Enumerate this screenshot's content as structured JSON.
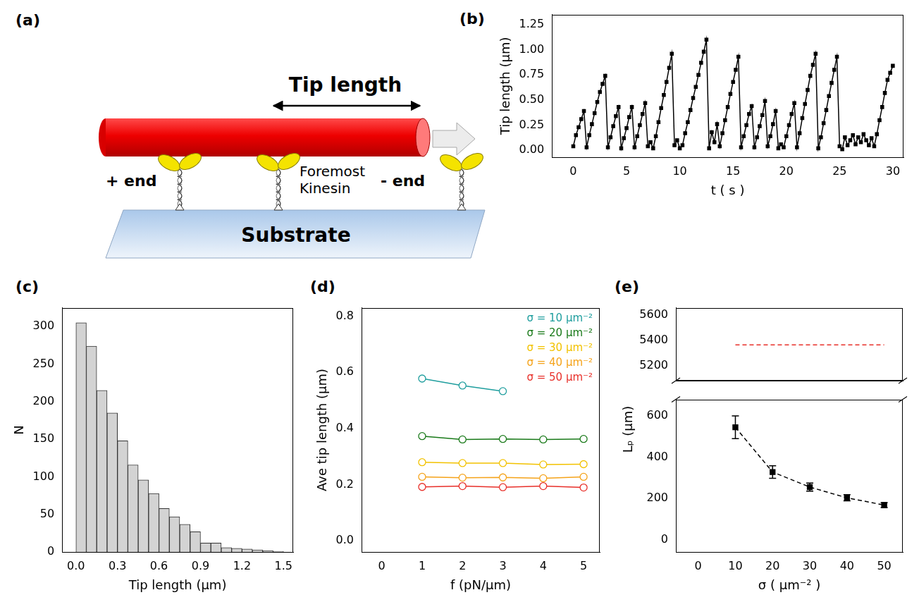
{
  "diagram": {
    "panel": "(a)",
    "tip_label": "Tip length",
    "plus_end": "+ end",
    "minus_end": "- end",
    "motor_label": "Foremost Kinesin",
    "substrate": "Substrate"
  },
  "chart_data": [
    {
      "panel": "(b)",
      "type": "line",
      "xlabel": "t ( s )",
      "ylabel": "Tip length (μm)",
      "x": [
        0,
        0.25,
        0.5,
        0.75,
        1,
        1.25,
        1.5,
        1.75,
        2,
        2.25,
        2.5,
        2.75,
        3,
        3.25,
        3.5,
        3.75,
        4,
        4.25,
        4.5,
        4.75,
        5,
        5.25,
        5.5,
        5.75,
        6,
        6.25,
        6.5,
        6.75,
        7,
        7.25,
        7.5,
        7.75,
        8,
        8.25,
        8.5,
        8.75,
        9,
        9.25,
        9.5,
        9.75,
        10,
        10.25,
        10.5,
        10.75,
        11,
        11.25,
        11.5,
        11.75,
        12,
        12.25,
        12.5,
        12.75,
        13,
        13.25,
        13.5,
        13.75,
        14,
        14.25,
        14.5,
        14.75,
        15,
        15.25,
        15.5,
        15.75,
        16,
        16.25,
        16.5,
        16.75,
        17,
        17.25,
        17.5,
        17.75,
        18,
        18.25,
        18.5,
        18.75,
        19,
        19.25,
        19.5,
        19.75,
        20,
        20.25,
        20.5,
        20.75,
        21,
        21.25,
        21.5,
        21.75,
        22,
        22.25,
        22.5,
        22.75,
        23,
        23.25,
        23.5,
        23.75,
        24,
        24.25,
        24.5,
        24.75,
        25,
        25.25,
        25.5,
        25.75,
        26,
        26.25,
        26.5,
        26.75,
        27,
        27.25,
        27.5,
        27.75,
        28,
        28.25,
        28.5,
        28.75,
        29,
        29.25,
        29.5,
        29.75,
        30
      ],
      "series": [
        {
          "color": "#000000",
          "marker": "square",
          "line_style": "solid",
          "values": [
            0.04,
            0.15,
            0.23,
            0.31,
            0.39,
            0.03,
            0.15,
            0.26,
            0.37,
            0.48,
            0.58,
            0.66,
            0.74,
            0.03,
            0.13,
            0.24,
            0.34,
            0.43,
            0.02,
            0.12,
            0.22,
            0.33,
            0.43,
            0.03,
            0.14,
            0.25,
            0.36,
            0.47,
            0.04,
            0.08,
            0.02,
            0.14,
            0.28,
            0.42,
            0.55,
            0.68,
            0.82,
            0.96,
            0.05,
            0.1,
            0.02,
            0.05,
            0.17,
            0.28,
            0.4,
            0.52,
            0.63,
            0.75,
            0.87,
            0.98,
            1.1,
            0.02,
            0.18,
            0.08,
            0.26,
            0.04,
            0.17,
            0.3,
            0.43,
            0.56,
            0.68,
            0.8,
            0.93,
            0.03,
            0.14,
            0.25,
            0.36,
            0.44,
            0.03,
            0.13,
            0.24,
            0.35,
            0.49,
            0.04,
            0.14,
            0.26,
            0.39,
            0.02,
            0.06,
            0.03,
            0.14,
            0.25,
            0.36,
            0.47,
            0.03,
            0.17,
            0.32,
            0.46,
            0.6,
            0.74,
            0.85,
            0.96,
            0.02,
            0.13,
            0.27,
            0.4,
            0.54,
            0.67,
            0.8,
            0.93,
            0.04,
            0.01,
            0.13,
            0.05,
            0.1,
            0.15,
            0.06,
            0.13,
            0.08,
            0.16,
            0.1,
            0.05,
            0.12,
            0.04,
            0.16,
            0.3,
            0.43,
            0.57,
            0.7,
            0.77,
            0.84
          ]
        }
      ],
      "xlim": [
        -2,
        31
      ],
      "xticks": [
        0,
        5,
        10,
        15,
        20,
        25,
        30
      ],
      "ylim": [
        -0.07,
        1.35
      ],
      "yticks": [
        {
          "value": 0,
          "label": "0.00"
        },
        {
          "value": 0.25,
          "label": "0.25"
        },
        {
          "value": 0.5,
          "label": "0.50"
        },
        {
          "value": 0.75,
          "label": "0.75"
        },
        {
          "value": 1,
          "label": "1.00"
        },
        {
          "value": 1.25,
          "label": "1.25"
        }
      ],
      "grid": false
    },
    {
      "panel": "(c)",
      "type": "histogram",
      "xlabel": "Tip length (μm)",
      "ylabel": "N",
      "bins": [
        0,
        0.075,
        0.15,
        0.225,
        0.3,
        0.375,
        0.45,
        0.525,
        0.6,
        0.675,
        0.75,
        0.825,
        0.9,
        0.975,
        1.05,
        1.125,
        1.2,
        1.275,
        1.35,
        1.425,
        1.5
      ],
      "values": [
        305,
        274,
        215,
        185,
        148,
        116,
        96,
        78,
        58,
        47,
        37,
        27,
        12,
        12,
        6,
        5,
        4,
        3,
        2,
        1
      ],
      "color": "#d3d3d3",
      "xlim": [
        -0.1,
        1.57
      ],
      "xticks": [
        {
          "value": 0,
          "label": "0.0"
        },
        {
          "value": 0.3,
          "label": "0.3"
        },
        {
          "value": 0.6,
          "label": "0.6"
        },
        {
          "value": 0.9,
          "label": "0.9"
        },
        {
          "value": 1.2,
          "label": "1.2"
        },
        {
          "value": 1.5,
          "label": "1.5"
        }
      ],
      "ylim": [
        0,
        325
      ],
      "yticks": [
        0,
        50,
        100,
        150,
        200,
        250,
        300
      ],
      "grid": false
    },
    {
      "panel": "(d)",
      "type": "line",
      "xlabel": "f (pN/μm)",
      "ylabel": "Ave tip length (μm)",
      "x": [
        1,
        2,
        3,
        4,
        5
      ],
      "series": [
        {
          "name": "σ = 10 μm⁻²",
          "color": "#1f9e9e",
          "marker": "circle",
          "line_style": "solid",
          "values": [
            0.578,
            0.553,
            0.533,
            null,
            null
          ]
        },
        {
          "name": "σ = 20 μm⁻²",
          "color": "#1a7a1a",
          "marker": "circle",
          "line_style": "solid",
          "values": [
            0.373,
            0.361,
            0.363,
            0.361,
            0.363
          ]
        },
        {
          "name": "σ = 30 μm⁻²",
          "color": "#f2c200",
          "marker": "circle",
          "line_style": "solid",
          "values": [
            0.28,
            0.277,
            0.277,
            0.272,
            0.273
          ]
        },
        {
          "name": "σ = 40 μm⁻²",
          "color": "#f5a31a",
          "marker": "circle",
          "line_style": "solid",
          "values": [
            0.228,
            0.225,
            0.226,
            0.223,
            0.228
          ]
        },
        {
          "name": "σ = 50 μm⁻²",
          "color": "#e8302a",
          "marker": "circle",
          "line_style": "solid",
          "values": [
            0.192,
            0.195,
            0.191,
            0.195,
            0.19
          ]
        }
      ],
      "xlim": [
        -0.5,
        5.4
      ],
      "xticks": [
        0,
        1,
        2,
        3,
        4,
        5
      ],
      "ylim": [
        -0.04,
        0.83
      ],
      "yticks": [
        {
          "value": 0,
          "label": "0.0"
        },
        {
          "value": 0.2,
          "label": "0.2"
        },
        {
          "value": 0.4,
          "label": "0.4"
        },
        {
          "value": 0.6,
          "label": "0.6"
        },
        {
          "value": 0.8,
          "label": "0.8"
        }
      ],
      "legend": "upper right",
      "grid": false
    },
    {
      "panel": "(e)",
      "type": "line",
      "x": [
        10,
        50
      ],
      "series": [
        {
          "color": "#e8302a",
          "marker": "none",
          "line_style": "dashed",
          "values": [
            5365,
            5365
          ]
        }
      ],
      "xlim": [
        -6,
        55
      ],
      "ylim": [
        5080,
        5660
      ],
      "yticks": [
        5200,
        5400,
        5600
      ],
      "tick_labels": "y",
      "grid": false
    },
    {
      "type": "line",
      "xlabel": "σ ( μm⁻² )",
      "ylabel": "Lₚ (μm)",
      "x": [
        10,
        20,
        30,
        40,
        50
      ],
      "series": [
        {
          "color": "#000000",
          "marker": "square",
          "line_style": "dashed",
          "values": [
            545,
            328,
            255,
            203,
            168
          ],
          "errors": [
            55,
            30,
            20,
            15,
            12
          ]
        }
      ],
      "xlim": [
        -6,
        55
      ],
      "xticks": [
        0,
        10,
        20,
        30,
        40,
        50
      ],
      "ylim": [
        -60,
        680
      ],
      "yticks": [
        0,
        200,
        400,
        600
      ],
      "grid": false
    }
  ]
}
